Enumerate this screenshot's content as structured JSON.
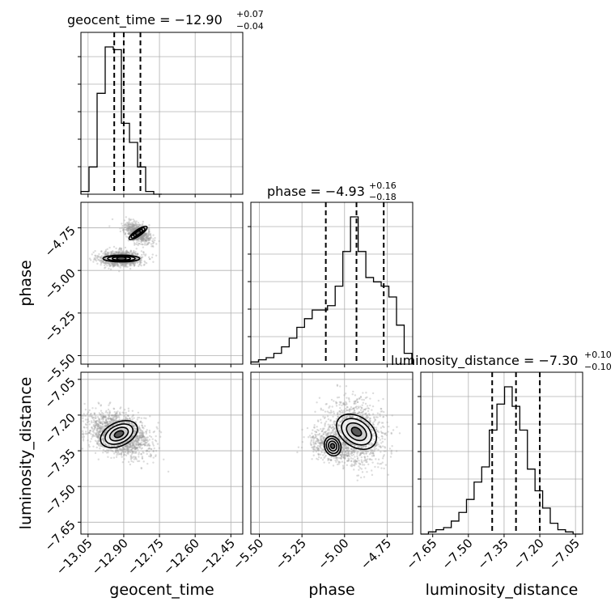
{
  "chart_data": {
    "type": "corner",
    "parameters": [
      "geocent_time",
      "phase",
      "luminosity_distance"
    ],
    "axis_labels": [
      "geocent_time",
      "phase",
      "luminosity_distance"
    ],
    "ranges": [
      [
        -13.08,
        -12.4
      ],
      [
        -5.55,
        -4.6
      ],
      [
        -7.7,
        -7.02
      ]
    ],
    "ticks": {
      "geocent_time": [
        -13.05,
        -12.9,
        -12.75,
        -12.6,
        -12.45
      ],
      "phase": [
        -5.5,
        -5.25,
        -5.0,
        -4.75
      ],
      "luminosity_distance": [
        -7.65,
        -7.5,
        -7.35,
        -7.2,
        -7.05
      ]
    },
    "tick_labels": {
      "geocent_time": [
        "−13.05",
        "−12.90",
        "−12.75",
        "−12.60",
        "−12.45"
      ],
      "phase": [
        "−5.50",
        "−5.25",
        "−5.00",
        "−4.75"
      ],
      "luminosity_distance": [
        "−7.65",
        "−7.50",
        "−7.35",
        "−7.20",
        "−7.05"
      ]
    },
    "titles": [
      {
        "param": "geocent_time",
        "text": "geocent_time = −12.90",
        "plus": "+0.07",
        "minus": "−0.04"
      },
      {
        "param": "phase",
        "text": "phase = −4.93",
        "plus": "+0.16",
        "minus": "−0.18"
      },
      {
        "param": "luminosity_distance",
        "text": "luminosity_distance = −7.30",
        "plus": "+0.10",
        "minus": "−0.10"
      }
    ],
    "quantiles": {
      "geocent_time": [
        -12.94,
        -12.9,
        -12.83
      ],
      "phase": [
        -5.11,
        -4.93,
        -4.77
      ],
      "luminosity_distance": [
        -7.4,
        -7.3,
        -7.2
      ]
    },
    "hist_1d": {
      "geocent_time": {
        "edges": [
          -13.08,
          -13.046,
          -13.012,
          -12.978,
          -12.944,
          -12.91,
          -12.876,
          -12.842,
          -12.808,
          -12.774,
          -12.74
        ],
        "counts": [
          1,
          10,
          37,
          54,
          53,
          26,
          19,
          10,
          1,
          0
        ]
      },
      "phase": {
        "edges": [
          -5.55,
          -5.505,
          -5.46,
          -5.415,
          -5.37,
          -5.325,
          -5.28,
          -5.235,
          -5.19,
          -5.145,
          -5.1,
          -5.055,
          -5.01,
          -4.965,
          -4.92,
          -4.875,
          -4.83,
          -4.785,
          -4.74,
          -4.695,
          -4.65,
          -4.605
        ],
        "counts": [
          1,
          2,
          3,
          5,
          8,
          12,
          17,
          21,
          25,
          25,
          27,
          36,
          52,
          68,
          52,
          40,
          38,
          36,
          31,
          18,
          5
        ]
      },
      "luminosity_distance": {
        "edges": [
          -7.7,
          -7.668,
          -7.636,
          -7.604,
          -7.572,
          -7.54,
          -7.508,
          -7.476,
          -7.444,
          -7.412,
          -7.38,
          -7.348,
          -7.316,
          -7.284,
          -7.252,
          -7.22,
          -7.188,
          -7.156,
          -7.124,
          -7.092,
          -7.06,
          -7.028
        ],
        "counts": [
          0,
          1,
          2,
          3,
          6,
          10,
          16,
          24,
          31,
          48,
          60,
          68,
          59,
          48,
          30,
          20,
          12,
          5,
          2,
          1,
          0
        ]
      }
    },
    "hist_2d_modes": [
      {
        "x": "geocent_time",
        "y": "phase",
        "peaks": [
          [
            -12.91,
            -4.93,
            0.14,
            0.05,
            1.0
          ],
          [
            -12.84,
            -4.78,
            0.09,
            0.05,
            0.75
          ]
        ],
        "angle": [
          0,
          -35
        ]
      },
      {
        "x": "geocent_time",
        "y": "luminosity_distance",
        "peaks": [
          [
            -12.92,
            -7.28,
            0.15,
            0.09,
            1.0
          ]
        ],
        "angle": [
          -25
        ]
      },
      {
        "x": "phase",
        "y": "luminosity_distance",
        "peaks": [
          [
            -4.93,
            -7.27,
            0.16,
            0.12,
            1.0
          ],
          [
            -5.07,
            -7.33,
            0.11,
            0.07,
            0.45
          ]
        ],
        "angle": [
          -55,
          -20
        ]
      }
    ],
    "contour_levels": [
      "0.5",
      "1.0",
      "1.5",
      "2.0"
    ],
    "grid": true,
    "legend": "none",
    "colors": {
      "hist": "#000000",
      "grid": "#b0b0b0",
      "scatter": "#9a9a9a",
      "density": "#000000"
    }
  }
}
